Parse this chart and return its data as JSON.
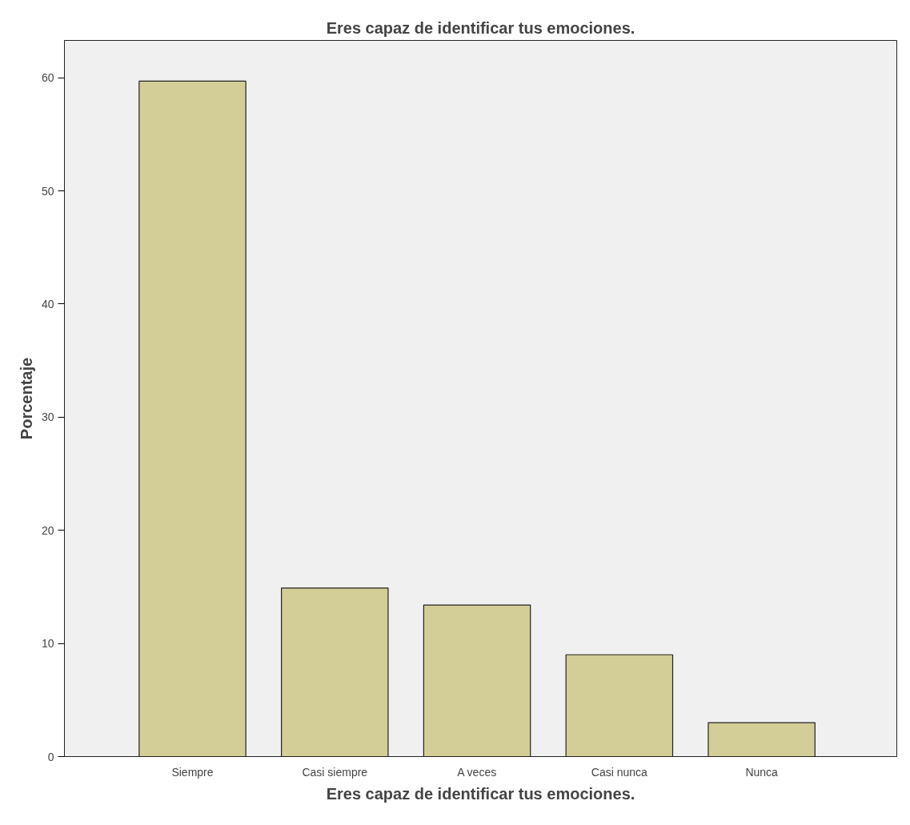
{
  "chart_data": {
    "type": "bar",
    "title": "Eres capaz de identificar tus emociones.",
    "xlabel": "Eres capaz de identificar tus emociones.",
    "ylabel": "Porcentaje",
    "categories": [
      "Siempre",
      "Casi siempre",
      "A veces",
      "Casi nunca",
      "Nunca"
    ],
    "values": [
      59.7,
      14.9,
      13.4,
      9.0,
      3.0
    ],
    "color": "#d3ce97",
    "ylim": [
      0,
      63.3
    ],
    "yticks": [
      0,
      10,
      20,
      30,
      40,
      50,
      60
    ],
    "grid": false
  }
}
